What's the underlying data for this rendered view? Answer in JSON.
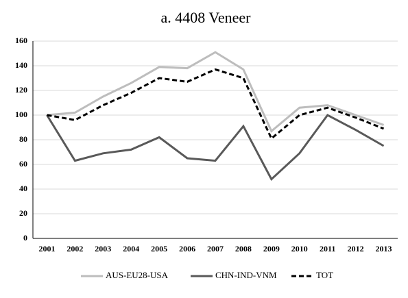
{
  "chart_data": {
    "type": "line",
    "title": "a. 4408 Veneer",
    "categories": [
      "2001",
      "2002",
      "2003",
      "2004",
      "2005",
      "2006",
      "2007",
      "2008",
      "2009",
      "2010",
      "2011",
      "2012",
      "2013"
    ],
    "series": [
      {
        "name": "AUS-EU28-USA",
        "color": "#bdbdbd",
        "dash": "solid",
        "values": [
          100,
          102,
          115,
          126,
          139,
          138,
          151,
          137,
          87,
          106,
          108,
          100,
          92
        ]
      },
      {
        "name": "CHN-IND-VNM",
        "color": "#595959",
        "dash": "solid",
        "values": [
          100,
          63,
          69,
          72,
          82,
          65,
          63,
          91,
          48,
          69,
          100,
          88,
          75
        ]
      },
      {
        "name": "TOT",
        "color": "#000000",
        "dash": "dashed",
        "values": [
          100,
          96,
          108,
          118,
          130,
          127,
          137,
          130,
          81,
          100,
          106,
          98,
          89
        ]
      }
    ],
    "ylim": [
      0,
      160
    ],
    "yticks": [
      0,
      20,
      40,
      60,
      80,
      100,
      120,
      140,
      160
    ],
    "grid": true,
    "legend": "bottom"
  }
}
